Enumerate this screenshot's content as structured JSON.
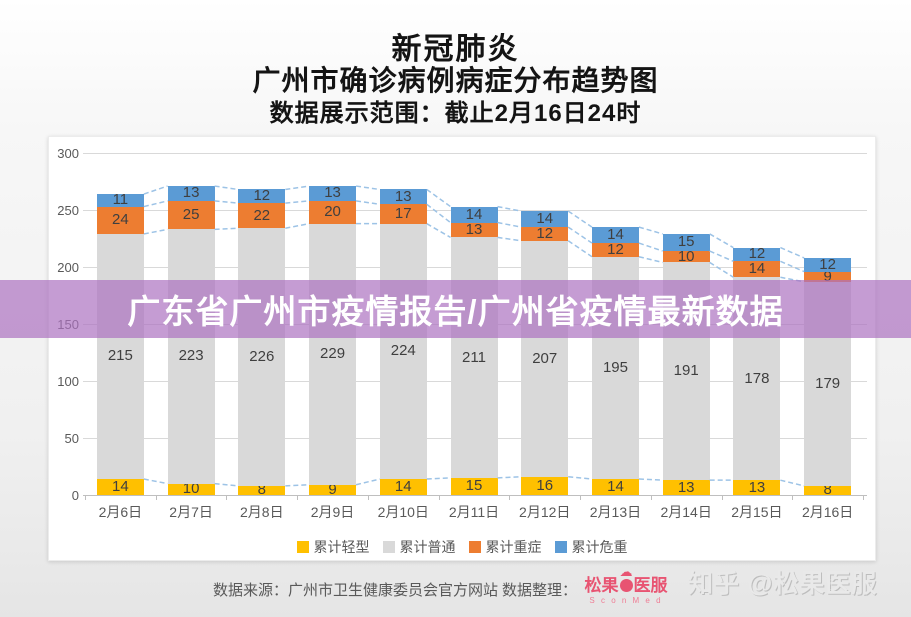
{
  "header": {
    "title": "新冠肺炎",
    "subtitle": "广州市确诊病例病症分布趋势图",
    "range_note": "数据展示范围：截止2月16日24时"
  },
  "banner": {
    "text": "广东省广州市疫情报告/广州省疫情最新数据",
    "color": "#ac72c0"
  },
  "chart_data": {
    "type": "bar",
    "stacked": true,
    "title": "广州市确诊病例病症分布趋势图",
    "categories": [
      "2月6日",
      "2月7日",
      "2月8日",
      "2月9日",
      "2月10日",
      "2月11日",
      "2月12日",
      "2月13日",
      "2月14日",
      "2月15日",
      "2月16日"
    ],
    "series": [
      {
        "name": "累计轻型",
        "color": "#FFC000",
        "values": [
          14,
          10,
          8,
          9,
          14,
          15,
          16,
          14,
          13,
          13,
          8
        ]
      },
      {
        "name": "累计普通",
        "color": "#D9D9D9",
        "values": [
          215,
          223,
          226,
          229,
          224,
          211,
          207,
          195,
          191,
          178,
          179
        ]
      },
      {
        "name": "累计重症",
        "color": "#ED7D31",
        "values": [
          24,
          25,
          22,
          20,
          17,
          13,
          12,
          12,
          10,
          14,
          9
        ]
      },
      {
        "name": "累计危重",
        "color": "#5B9BD5",
        "values": [
          11,
          13,
          12,
          13,
          13,
          14,
          14,
          14,
          15,
          12,
          12
        ]
      }
    ],
    "ylim": [
      0,
      300
    ],
    "ytick_interval": 50,
    "grid": true,
    "legend_position": "bottom",
    "series_line_color": "#9DC3E6",
    "label_color": "#3f3f3f"
  },
  "footer": {
    "source_label": "数据来源：广州市卫生健康委员会官方网站",
    "collation_label": "数据整理：",
    "logo": {
      "text_left": "松果",
      "text_right": "医服",
      "cloud_glyph": "☁",
      "subtext": "S c o n M e d",
      "color": "#e85472"
    },
    "watermark": "知乎 @松果医服"
  }
}
